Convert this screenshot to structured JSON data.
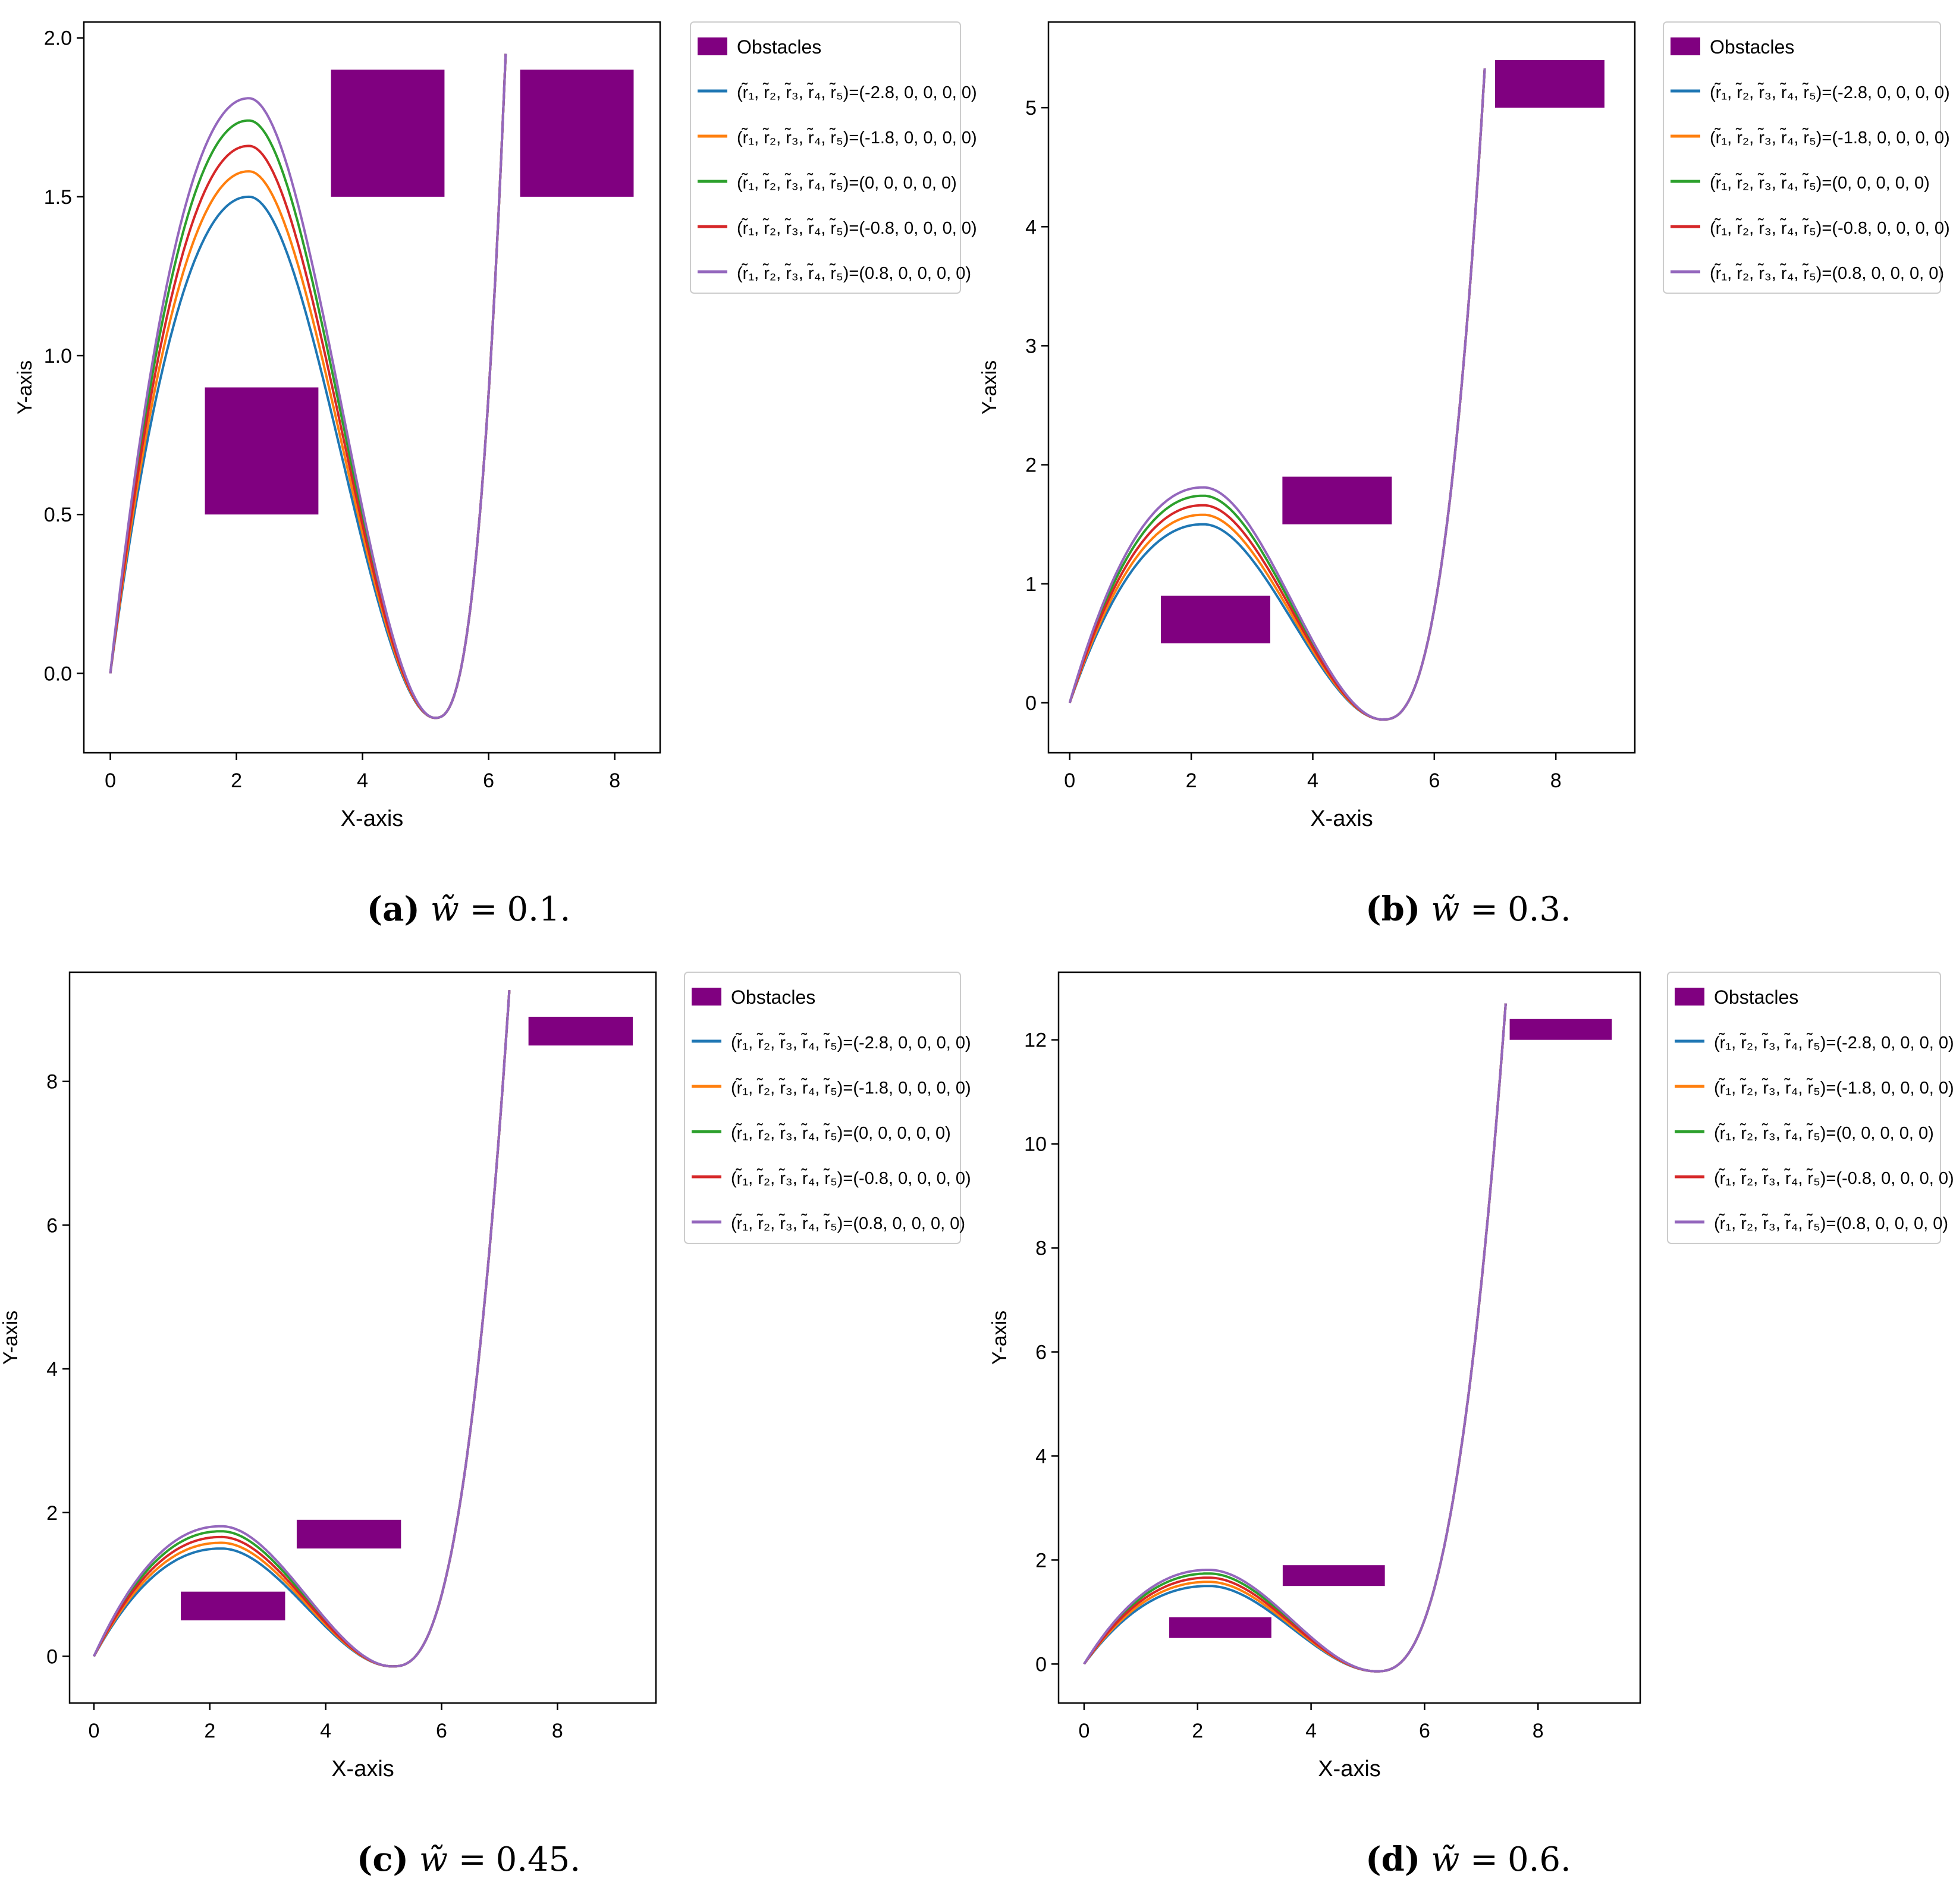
{
  "figure": {
    "panels": [
      {
        "id": "a",
        "caption_letter": "(a)",
        "caption_value": "0.1."
      },
      {
        "id": "b",
        "caption_letter": "(b)",
        "caption_value": "0.3."
      },
      {
        "id": "c",
        "caption_letter": "(c)",
        "caption_value": "0.45."
      },
      {
        "id": "d",
        "caption_letter": "(d)",
        "caption_value": "0.6."
      }
    ],
    "caption_symbol": "w̃ ="
  },
  "colors": {
    "obstacle": "#800080",
    "series": [
      "#1f77b4",
      "#ff7f0e",
      "#2ca02c",
      "#d62728",
      "#9467bd"
    ]
  },
  "legend": {
    "obstacle_label": "Obstacles",
    "series_prefix": "(r̃₁, r̃₂, r̃₃, r̃₄, r̃₅)=",
    "series_values": [
      "(-2.8, 0, 0, 0, 0)",
      "(-1.8, 0, 0, 0, 0)",
      "(0, 0, 0, 0, 0)",
      "(-0.8, 0, 0, 0, 0)",
      "(0.8, 0, 0, 0, 0)"
    ]
  },
  "chart_data": [
    {
      "type": "line",
      "title": "",
      "xlabel": "X-axis",
      "ylabel": "Y-axis",
      "xlim": [
        -0.42,
        8.72
      ],
      "ylim": [
        -0.25,
        2.05
      ],
      "xticks": [
        0,
        2,
        4,
        6,
        8
      ],
      "yticks": [
        0.0,
        0.5,
        1.0,
        1.5,
        2.0
      ],
      "ytick_labels": [
        "0.0",
        "0.5",
        "1.0",
        "1.5",
        "2.0"
      ],
      "grid": false,
      "legend_position": "outside-right-top",
      "curve_x_end": 6.27,
      "curve_y_end": 1.95,
      "series": [
        {
          "name": "(-2.8, 0, 0, 0, 0)",
          "peak_y": 1.5,
          "color": "#1f77b4"
        },
        {
          "name": "(-1.8, 0, 0, 0, 0)",
          "peak_y": 1.58,
          "color": "#ff7f0e"
        },
        {
          "name": "(0, 0, 0, 0, 0)",
          "peak_y": 1.74,
          "color": "#2ca02c"
        },
        {
          "name": "(-0.8, 0, 0, 0, 0)",
          "peak_y": 1.66,
          "color": "#d62728"
        },
        {
          "name": "(0.8, 0, 0, 0, 0)",
          "peak_y": 1.81,
          "color": "#9467bd"
        }
      ],
      "trough": {
        "x": 5.15,
        "y": -0.14
      },
      "obstacles": [
        {
          "x0": 1.5,
          "x1": 3.3,
          "y0": 0.5,
          "y1": 0.9
        },
        {
          "x0": 3.5,
          "x1": 5.3,
          "y0": 1.5,
          "y1": 1.9
        },
        {
          "x0": 6.5,
          "x1": 8.3,
          "y0": 1.5,
          "y1": 1.9
        }
      ]
    },
    {
      "type": "line",
      "title": "",
      "xlabel": "X-axis",
      "ylabel": "Y-axis",
      "xlim": [
        -0.35,
        9.3
      ],
      "ylim": [
        -0.42,
        5.72
      ],
      "xticks": [
        0,
        2,
        4,
        6,
        8
      ],
      "yticks": [
        0,
        1,
        2,
        3,
        4,
        5
      ],
      "ytick_labels": [
        "0",
        "1",
        "2",
        "3",
        "4",
        "5"
      ],
      "grid": false,
      "legend_position": "outside-right-top",
      "curve_x_end": 6.83,
      "curve_y_end": 5.33,
      "series": [
        {
          "name": "(-2.8, 0, 0, 0, 0)",
          "peak_y": 1.5,
          "color": "#1f77b4"
        },
        {
          "name": "(-1.8, 0, 0, 0, 0)",
          "peak_y": 1.58,
          "color": "#ff7f0e"
        },
        {
          "name": "(0, 0, 0, 0, 0)",
          "peak_y": 1.74,
          "color": "#2ca02c"
        },
        {
          "name": "(-0.8, 0, 0, 0, 0)",
          "peak_y": 1.66,
          "color": "#d62728"
        },
        {
          "name": "(0.8, 0, 0, 0, 0)",
          "peak_y": 1.81,
          "color": "#9467bd"
        }
      ],
      "trough": {
        "x": 5.15,
        "y": -0.14
      },
      "obstacles": [
        {
          "x0": 1.5,
          "x1": 3.3,
          "y0": 0.5,
          "y1": 0.9
        },
        {
          "x0": 3.5,
          "x1": 5.3,
          "y0": 1.5,
          "y1": 1.9
        },
        {
          "x0": 7.0,
          "x1": 8.8,
          "y0": 5.0,
          "y1": 5.4
        }
      ]
    },
    {
      "type": "line",
      "title": "",
      "xlabel": "X-axis",
      "ylabel": "Y-axis",
      "xlim": [
        -0.42,
        9.7
      ],
      "ylim": [
        -0.65,
        9.52
      ],
      "xticks": [
        0,
        2,
        4,
        6,
        8
      ],
      "yticks": [
        0,
        2,
        4,
        6,
        8
      ],
      "ytick_labels": [
        "0",
        "2",
        "4",
        "6",
        "8"
      ],
      "grid": false,
      "legend_position": "outside-right-top",
      "curve_x_end": 7.17,
      "curve_y_end": 9.27,
      "series": [
        {
          "name": "(-2.8, 0, 0, 0, 0)",
          "peak_y": 1.5,
          "color": "#1f77b4"
        },
        {
          "name": "(-1.8, 0, 0, 0, 0)",
          "peak_y": 1.58,
          "color": "#ff7f0e"
        },
        {
          "name": "(0, 0, 0, 0, 0)",
          "peak_y": 1.74,
          "color": "#2ca02c"
        },
        {
          "name": "(-0.8, 0, 0, 0, 0)",
          "peak_y": 1.66,
          "color": "#d62728"
        },
        {
          "name": "(0.8, 0, 0, 0, 0)",
          "peak_y": 1.81,
          "color": "#9467bd"
        }
      ],
      "trough": {
        "x": 5.15,
        "y": -0.14
      },
      "obstacles": [
        {
          "x0": 1.5,
          "x1": 3.3,
          "y0": 0.5,
          "y1": 0.9
        },
        {
          "x0": 3.5,
          "x1": 5.3,
          "y0": 1.5,
          "y1": 1.9
        },
        {
          "x0": 7.5,
          "x1": 9.3,
          "y0": 8.5,
          "y1": 8.9
        }
      ]
    },
    {
      "type": "line",
      "title": "",
      "xlabel": "X-axis",
      "ylabel": "Y-axis",
      "xlim": [
        -0.45,
        9.8
      ],
      "ylim": [
        -0.75,
        13.3
      ],
      "xticks": [
        0,
        2,
        4,
        6,
        8
      ],
      "yticks": [
        0,
        2,
        4,
        6,
        8,
        10,
        12
      ],
      "ytick_labels": [
        "0",
        "2",
        "4",
        "6",
        "8",
        "10",
        "12"
      ],
      "grid": false,
      "legend_position": "outside-right-top",
      "curve_x_end": 7.43,
      "curve_y_end": 12.7,
      "series": [
        {
          "name": "(-2.8, 0, 0, 0, 0)",
          "peak_y": 1.5,
          "color": "#1f77b4"
        },
        {
          "name": "(-1.8, 0, 0, 0, 0)",
          "peak_y": 1.58,
          "color": "#ff7f0e"
        },
        {
          "name": "(0, 0, 0, 0, 0)",
          "peak_y": 1.74,
          "color": "#2ca02c"
        },
        {
          "name": "(-0.8, 0, 0, 0, 0)",
          "peak_y": 1.66,
          "color": "#d62728"
        },
        {
          "name": "(0.8, 0, 0, 0, 0)",
          "peak_y": 1.81,
          "color": "#9467bd"
        }
      ],
      "trough": {
        "x": 5.15,
        "y": -0.14
      },
      "obstacles": [
        {
          "x0": 1.5,
          "x1": 3.3,
          "y0": 0.5,
          "y1": 0.9
        },
        {
          "x0": 3.5,
          "x1": 5.3,
          "y0": 1.5,
          "y1": 1.9
        },
        {
          "x0": 7.5,
          "x1": 9.3,
          "y0": 12.0,
          "y1": 12.4
        }
      ]
    }
  ]
}
